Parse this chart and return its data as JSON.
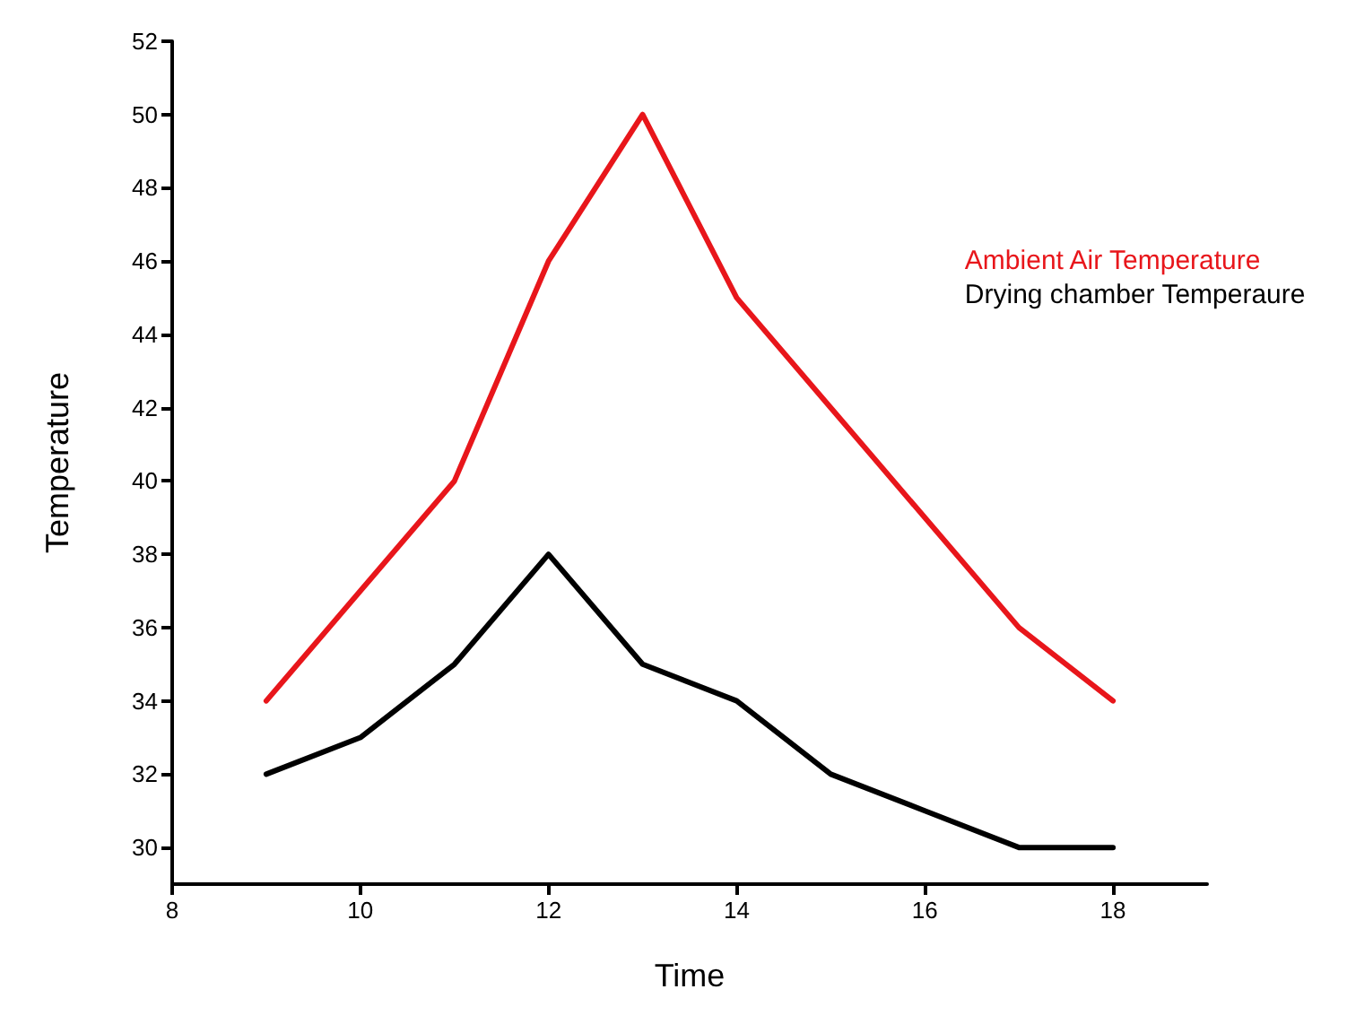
{
  "chart_data": {
    "type": "line",
    "xlabel": "Time",
    "ylabel": "Temperature",
    "x": [
      9,
      10,
      11,
      12,
      13,
      14,
      15,
      16,
      17,
      18
    ],
    "series": [
      {
        "name": "Ambient Air Temperature",
        "color": "#e8161b",
        "values": [
          34,
          37,
          40,
          46,
          50,
          45,
          42,
          39,
          36,
          34
        ]
      },
      {
        "name": "Drying chamber Temperaure",
        "color": "#000000",
        "values": [
          32,
          33,
          35,
          38,
          35,
          34,
          32,
          31,
          30,
          30
        ]
      }
    ],
    "xlim": [
      8,
      19
    ],
    "xticks": [
      8,
      10,
      12,
      14,
      16,
      18
    ],
    "ylim": [
      29,
      52
    ],
    "yticks": [
      30,
      32,
      34,
      36,
      38,
      40,
      42,
      44,
      46,
      48,
      50,
      52
    ],
    "grid": false,
    "legend": "right",
    "marker": "none",
    "line_style": "solid"
  }
}
